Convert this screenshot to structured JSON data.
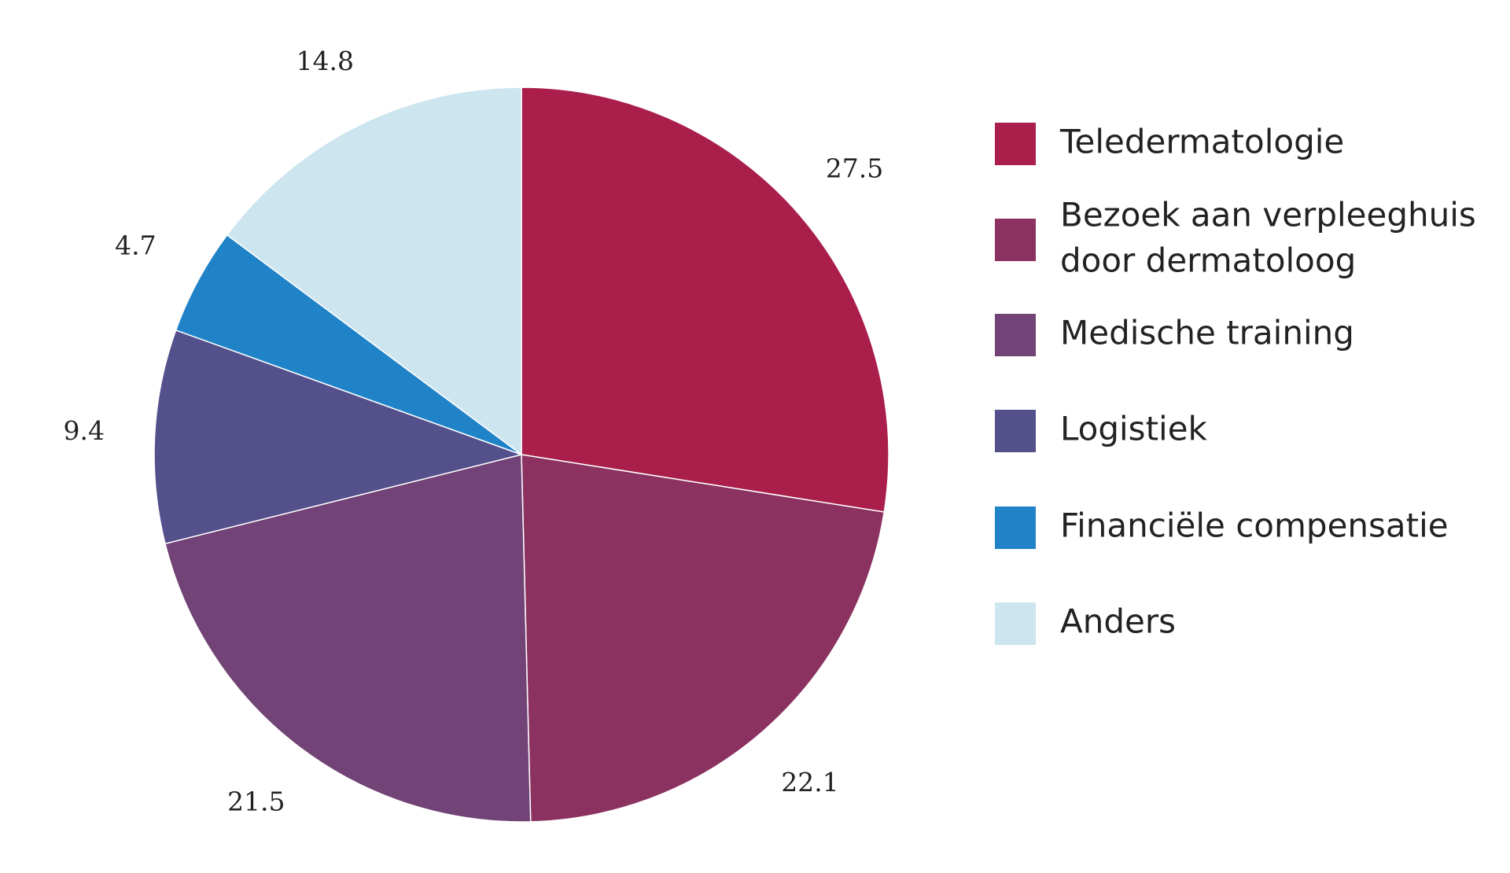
{
  "chart_data": {
    "type": "pie",
    "title": "",
    "start": "top",
    "direction": "clockwise",
    "legend_position": "right",
    "slices": [
      {
        "label": "Teledermatologie",
        "legend_lines": [
          "Teledermatologie"
        ],
        "value": 27.5,
        "value_label": "27.5",
        "color": "#A91E4A"
      },
      {
        "label": "Bezoek aan verpleeghuis door dermatoloog",
        "legend_lines": [
          "Bezoek aan verpleeghuis",
          "door dermatoloog"
        ],
        "value": 22.1,
        "value_label": "22.1",
        "color": "#8B3260"
      },
      {
        "label": "Medische training",
        "legend_lines": [
          "Medische training"
        ],
        "value": 21.5,
        "value_label": "21.5",
        "color": "#724376"
      },
      {
        "label": "Logistiek",
        "legend_lines": [
          "Logistiek"
        ],
        "value": 9.4,
        "value_label": "9.4",
        "color": "#53508C"
      },
      {
        "label": "Financiële compensatie",
        "legend_lines": [
          "Financiële compensatie"
        ],
        "value": 4.7,
        "value_label": "4.7",
        "color": "#2183C7"
      },
      {
        "label": "Anders",
        "legend_lines": [
          "Anders"
        ],
        "value": 14.8,
        "value_label": "14.8",
        "color": "#CDE5EE"
      }
    ]
  }
}
